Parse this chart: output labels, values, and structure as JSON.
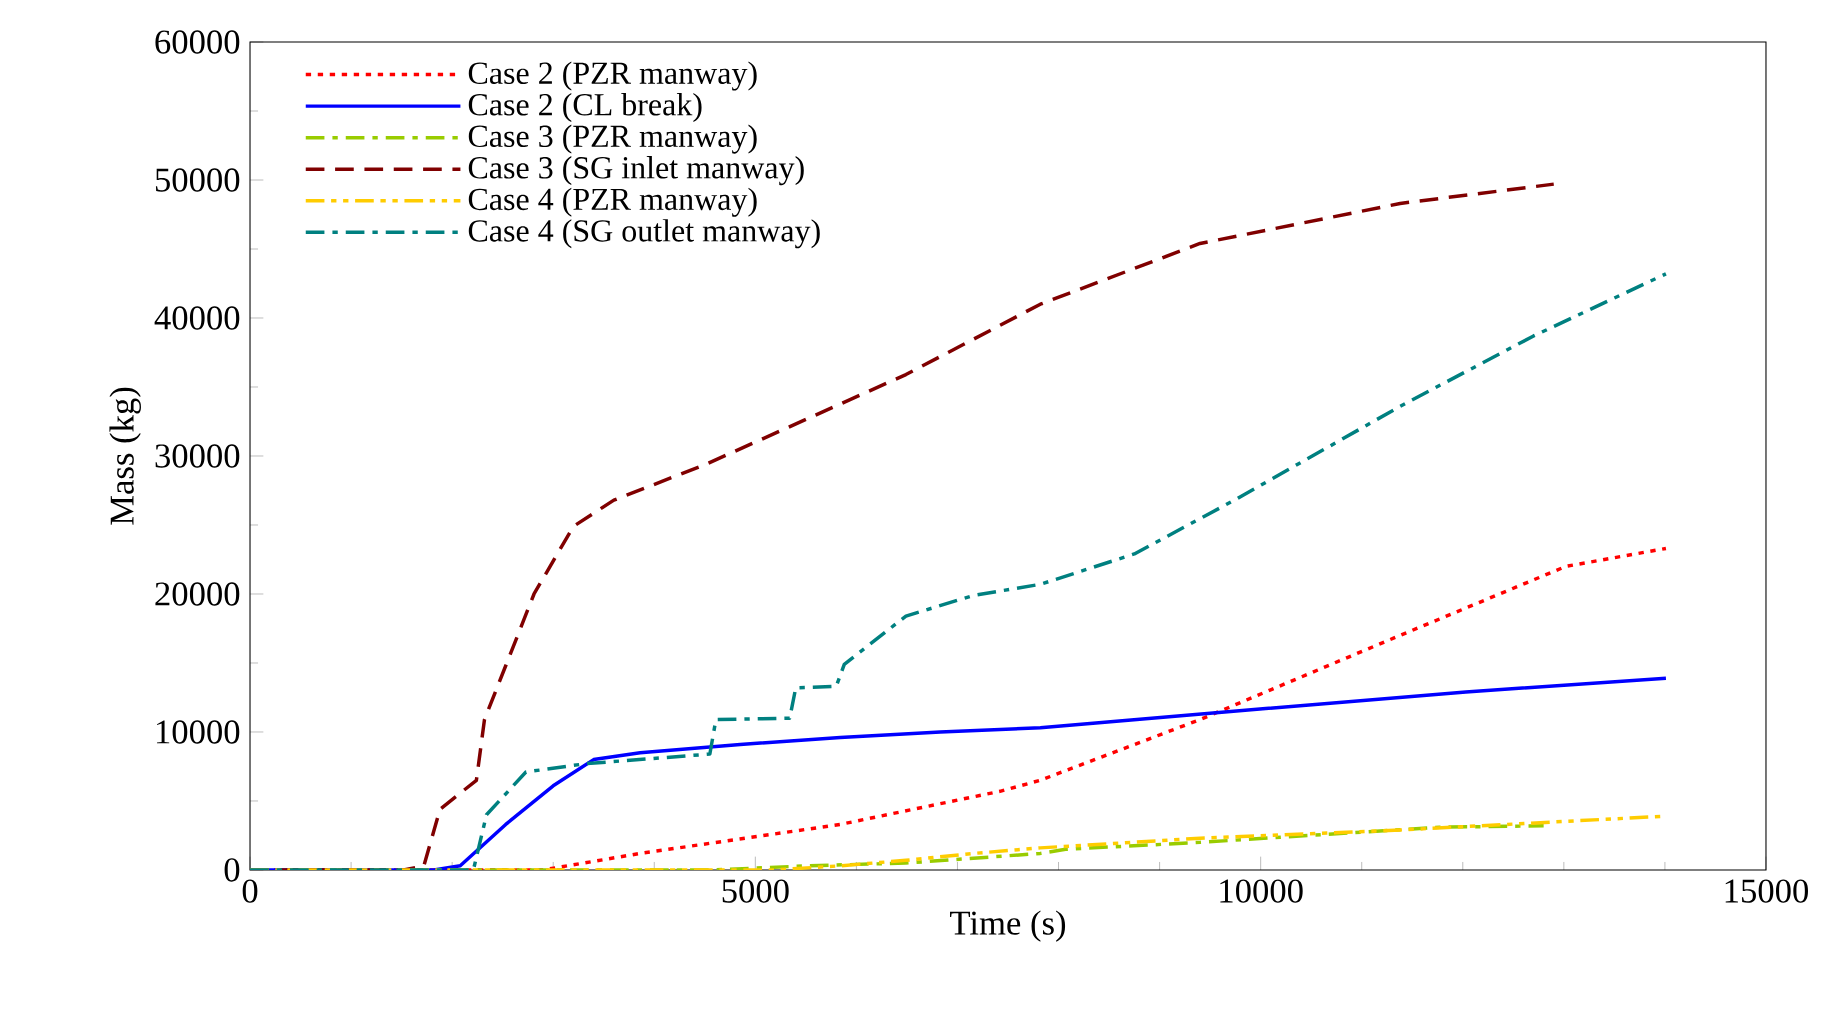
{
  "chart_data": {
    "type": "line",
    "xlabel": "Time (s)",
    "ylabel": "Mass (kg)",
    "xlim": [
      0,
      15000
    ],
    "xticks": [
      0,
      5000,
      10000,
      15000
    ],
    "ylim": [
      0,
      60000
    ],
    "yticks": [
      0,
      10000,
      20000,
      30000,
      40000,
      50000,
      60000
    ],
    "grid": false,
    "legend": "top left",
    "series": [
      {
        "name": "Case 2 (PZR manway)",
        "color": "#ff0000",
        "line_style": "dotted",
        "x": [
          0,
          2900,
          3860,
          5840,
          7420,
          7820,
          9400,
          11380,
          13020,
          14010
        ],
        "values": [
          0,
          0,
          1200,
          3300,
          5700,
          6500,
          10900,
          17000,
          22000,
          23300
        ]
      },
      {
        "name": "Case 2 (CL break)",
        "color": "#0000ff",
        "line_style": "solid",
        "x": [
          0,
          1820,
          2080,
          2530,
          3000,
          3400,
          3860,
          4850,
          5840,
          6830,
          7820,
          10050,
          12030,
          14010
        ],
        "values": [
          0,
          0,
          300,
          3300,
          6100,
          8000,
          8500,
          9100,
          9600,
          10000,
          10300,
          11700,
          12900,
          13900
        ]
      },
      {
        "name": "Case 3 (PZR manway)",
        "color": "#99cc00",
        "line_style": "dashdot",
        "x": [
          0,
          4590,
          5500,
          6490,
          7820,
          8070,
          9400,
          11770,
          12800
        ],
        "values": [
          0,
          0,
          300,
          500,
          1200,
          1500,
          2000,
          3100,
          3200
        ]
      },
      {
        "name": "Case 3 (SG inlet manway)",
        "color": "#800000",
        "line_style": "dashed",
        "x": [
          0,
          1520,
          1720,
          1880,
          2240,
          2320,
          2530,
          2810,
          3200,
          3600,
          4510,
          6490,
          7820,
          9400,
          11380,
          12900
        ],
        "values": [
          0,
          0,
          300,
          4400,
          6500,
          10900,
          14800,
          20000,
          24900,
          26800,
          29400,
          35900,
          41000,
          45400,
          48300,
          49700
        ]
      },
      {
        "name": "Case 4 (PZR manway)",
        "color": "#ffcc00",
        "line_style": "dashdotdot",
        "x": [
          0,
          5180,
          5840,
          6490,
          7160,
          7820,
          9400,
          11380,
          14010
        ],
        "values": [
          0,
          0,
          300,
          700,
          1200,
          1600,
          2300,
          2900,
          3900
        ]
      },
      {
        "name": "Case 4 (SG outlet manway)",
        "color": "#008080",
        "line_style": "dashdot",
        "x": [
          0,
          2210,
          2340,
          2730,
          3320,
          4550,
          4610,
          5340,
          5400,
          5800,
          5880,
          6490,
          7160,
          7820,
          8750,
          9740,
          11380,
          12700,
          14010
        ],
        "values": [
          0,
          0,
          4000,
          7100,
          7700,
          8400,
          10900,
          11000,
          13200,
          13300,
          14900,
          18400,
          19900,
          20700,
          22900,
          26800,
          33600,
          38700,
          43200
        ]
      }
    ]
  }
}
